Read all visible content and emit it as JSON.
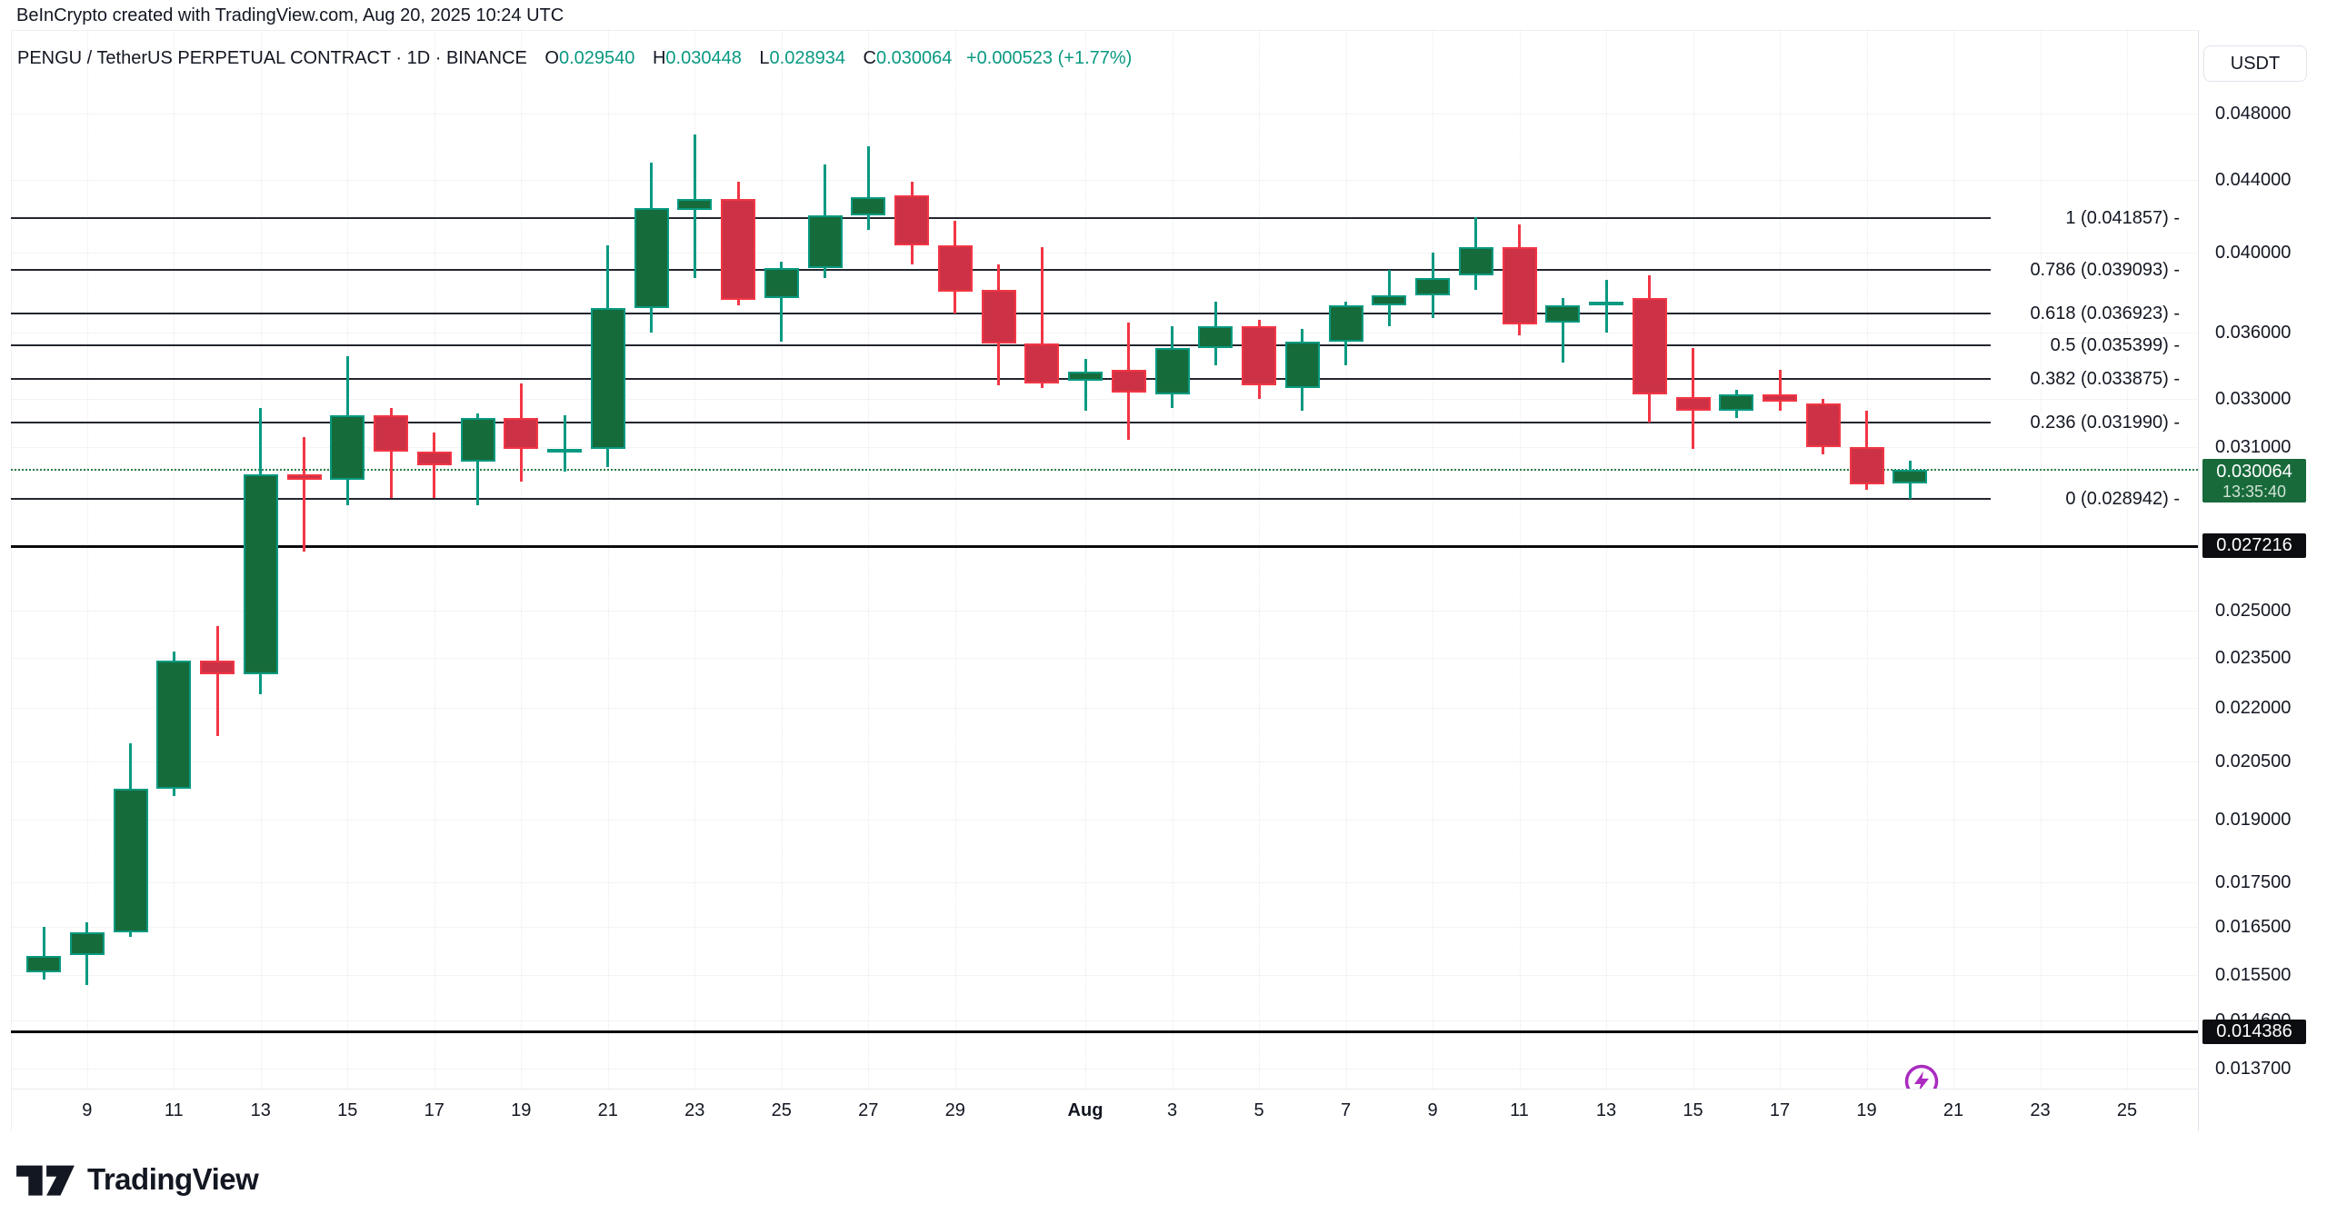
{
  "attribution": "BeInCrypto created with TradingView.com, Aug 20, 2025 10:24 UTC",
  "legend": {
    "symbol_line": "PENGU / TetherUS PERPETUAL CONTRACT · 1D · BINANCE",
    "o_label": "O",
    "o_value": "0.029540",
    "h_label": "H",
    "h_value": "0.030448",
    "l_label": "L",
    "l_value": "0.028934",
    "c_label": "C",
    "c_value": "0.030064",
    "change_value": "+0.000523 (+1.77%)"
  },
  "price_axis": {
    "currency_button_label": "USDT",
    "tick_labels": [
      "0.048000",
      "0.044000",
      "0.040000",
      "0.036000",
      "0.033000",
      "0.031000",
      "0.025000",
      "0.023500",
      "0.022000",
      "0.020500",
      "0.019000",
      "0.017500",
      "0.016500",
      "0.015500",
      "0.014600",
      "0.013700"
    ],
    "current_price_badge": {
      "price": "0.030064",
      "countdown": "13:35:40"
    },
    "line_badges": [
      "0.027216",
      "0.014386"
    ]
  },
  "time_axis": {
    "ticks": [
      {
        "label": "9",
        "offset": 1
      },
      {
        "label": "11",
        "offset": 3
      },
      {
        "label": "13",
        "offset": 5
      },
      {
        "label": "15",
        "offset": 7
      },
      {
        "label": "17",
        "offset": 9
      },
      {
        "label": "19",
        "offset": 11
      },
      {
        "label": "21",
        "offset": 13
      },
      {
        "label": "23",
        "offset": 15
      },
      {
        "label": "25",
        "offset": 17
      },
      {
        "label": "27",
        "offset": 19
      },
      {
        "label": "29",
        "offset": 21
      },
      {
        "label": "Aug",
        "offset": 24,
        "bold": true
      },
      {
        "label": "3",
        "offset": 26
      },
      {
        "label": "5",
        "offset": 28
      },
      {
        "label": "7",
        "offset": 30
      },
      {
        "label": "9",
        "offset": 32
      },
      {
        "label": "11",
        "offset": 34
      },
      {
        "label": "13",
        "offset": 36
      },
      {
        "label": "15",
        "offset": 38
      },
      {
        "label": "17",
        "offset": 40
      },
      {
        "label": "19",
        "offset": 42
      },
      {
        "label": "21",
        "offset": 44
      },
      {
        "label": "23",
        "offset": 46
      },
      {
        "label": "25",
        "offset": 48
      }
    ]
  },
  "footer": {
    "logo_text": "TradingView"
  },
  "icons": {
    "lightning": "lightning-bolt-circle-icon",
    "logo_mark": "tradingview-mark-icon"
  },
  "colors": {
    "up_border": "#089981",
    "up_fill": "#166b3a",
    "down_border": "#f23645",
    "down_fill": "#cd3145",
    "text": "#131722",
    "badge_up_bg": "#186a3b",
    "badge_black_bg": "#0c0d10",
    "fib_line": "#23262e",
    "black_line": "#0a0b0d",
    "current_price_line": "#2b7d46",
    "accent_purple": "#aa2bc0"
  },
  "chart_data": {
    "type": "candlestick",
    "scale": "logarithmic",
    "symbol": "PENGU / TetherUS PERPETUAL CONTRACT",
    "exchange": "BINANCE",
    "interval": "1D",
    "quote_currency": "USDT",
    "current_price": 0.030064,
    "horizontal_lines": [
      0.027216,
      0.014386
    ],
    "fib_levels": [
      {
        "text": "1 (0.041857) -",
        "price": 0.041857
      },
      {
        "text": "0.786 (0.039093) -",
        "price": 0.039093
      },
      {
        "text": "0.618 (0.036923) -",
        "price": 0.036923
      },
      {
        "text": "0.5 (0.035399) -",
        "price": 0.035399
      },
      {
        "text": "0.382 (0.033875) -",
        "price": 0.033875
      },
      {
        "text": "0.236 (0.031990) -",
        "price": 0.03199
      },
      {
        "text": "0 (0.028942) -",
        "price": 0.028942
      }
    ],
    "candles": [
      [
        "Jul 8",
        0.01555,
        0.0165,
        0.0154,
        0.0159
      ],
      [
        "Jul 9",
        0.0159,
        0.0166,
        0.0153,
        0.0164
      ],
      [
        "Jul 10",
        0.0164,
        0.021,
        0.0163,
        0.0198
      ],
      [
        "Jul 11",
        0.0198,
        0.0237,
        0.0196,
        0.0234
      ],
      [
        "Jul 12",
        0.0234,
        0.0245,
        0.0212,
        0.023
      ],
      [
        "Jul 13",
        0.023,
        0.0326,
        0.0224,
        0.0299
      ],
      [
        "Jul 14",
        0.0299,
        0.0314,
        0.027,
        0.0297
      ],
      [
        "Jul 15",
        0.0297,
        0.0349,
        0.0287,
        0.0323
      ],
      [
        "Jul 16",
        0.0323,
        0.0326,
        0.029,
        0.0308
      ],
      [
        "Jul 17",
        0.0308,
        0.0316,
        0.029,
        0.03025
      ],
      [
        "Jul 18",
        0.0304,
        0.0324,
        0.0287,
        0.0322
      ],
      [
        "Jul 19",
        0.0322,
        0.0337,
        0.0296,
        0.0309
      ],
      [
        "Jul 20",
        0.0308,
        0.0323,
        0.03,
        0.0309
      ],
      [
        "Jul 21",
        0.0309,
        0.0404,
        0.0302,
        0.0372
      ],
      [
        "Jul 22",
        0.0372,
        0.045,
        0.036,
        0.0424
      ],
      [
        "Jul 23",
        0.0423,
        0.0467,
        0.0387,
        0.0429
      ],
      [
        "Jul 24",
        0.0429,
        0.0439,
        0.0373,
        0.0376
      ],
      [
        "Jul 25",
        0.0377,
        0.0395,
        0.0356,
        0.0392
      ],
      [
        "Jul 26",
        0.0392,
        0.0449,
        0.0387,
        0.042
      ],
      [
        "Jul 27",
        0.042,
        0.046,
        0.0412,
        0.043
      ],
      [
        "Jul 28",
        0.0431,
        0.0439,
        0.0394,
        0.0404
      ],
      [
        "Jul 29",
        0.0404,
        0.0417,
        0.0369,
        0.038
      ],
      [
        "Jul 30",
        0.0381,
        0.0394,
        0.0336,
        0.0355
      ],
      [
        "Jul 31",
        0.0355,
        0.0403,
        0.0335,
        0.0337
      ],
      [
        "Aug 1",
        0.0338,
        0.0348,
        0.0325,
        0.0342
      ],
      [
        "Aug 2",
        0.0343,
        0.0365,
        0.0313,
        0.0333
      ],
      [
        "Aug 3",
        0.0332,
        0.0363,
        0.0326,
        0.0353
      ],
      [
        "Aug 4",
        0.0353,
        0.0375,
        0.0345,
        0.0363
      ],
      [
        "Aug 5",
        0.0363,
        0.0366,
        0.033,
        0.0336
      ],
      [
        "Aug 6",
        0.0335,
        0.0362,
        0.0325,
        0.0356
      ],
      [
        "Aug 7",
        0.0356,
        0.0375,
        0.0345,
        0.0373
      ],
      [
        "Aug 8",
        0.0373,
        0.0391,
        0.0363,
        0.0378
      ],
      [
        "Aug 9",
        0.0378,
        0.04,
        0.0367,
        0.0387
      ],
      [
        "Aug 10",
        0.0388,
        0.0419,
        0.0381,
        0.0403
      ],
      [
        "Aug 11",
        0.0403,
        0.0415,
        0.0359,
        0.0364
      ],
      [
        "Aug 12",
        0.0365,
        0.0377,
        0.0346,
        0.0373
      ],
      [
        "Aug 13",
        0.0374,
        0.0386,
        0.036,
        0.0375
      ],
      [
        "Aug 14",
        0.0377,
        0.0388,
        0.032,
        0.0332
      ],
      [
        "Aug 15",
        0.0331,
        0.0353,
        0.0309,
        0.0325
      ],
      [
        "Aug 16",
        0.0325,
        0.0334,
        0.0322,
        0.0332
      ],
      [
        "Aug 17",
        0.0332,
        0.0343,
        0.0325,
        0.0329
      ],
      [
        "Aug 18",
        0.0328,
        0.033,
        0.0307,
        0.031
      ],
      [
        "Aug 19",
        0.031,
        0.0325,
        0.0293,
        0.0295
      ],
      [
        "Aug 20",
        0.02954,
        0.030448,
        0.028934,
        0.030064
      ]
    ]
  }
}
